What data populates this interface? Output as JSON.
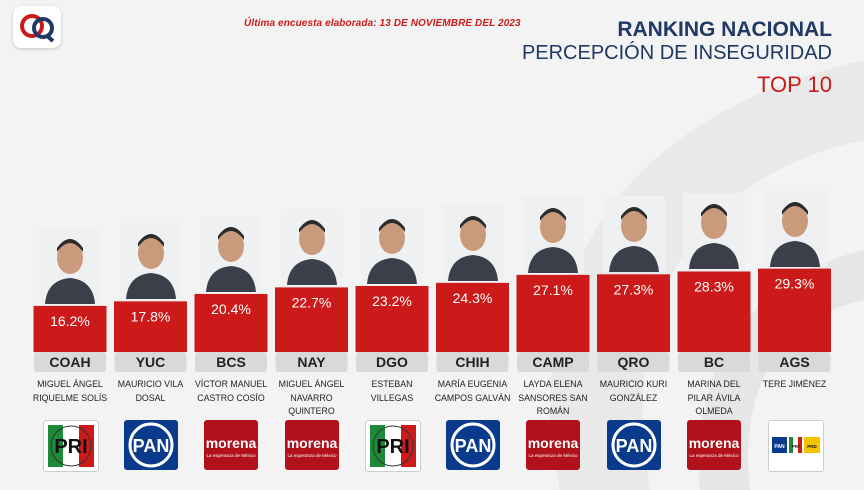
{
  "header": {
    "survey_note": "Última encuesta elaborada: 13 DE NOVIEMBRE DEL 2023",
    "title_line1": "RANKING NACIONAL",
    "title_line2": "PERCEPCIÓN DE INSEGURIDAD",
    "title_line3": "TOP 10"
  },
  "colors": {
    "bar": "#cc1a1a",
    "navy": "#1f3864",
    "state_box": "#d9d9d9"
  },
  "chart_data": {
    "type": "bar",
    "categories": [
      "COAH",
      "YUC",
      "BCS",
      "NAY",
      "DGO",
      "CHIH",
      "CAMP",
      "QRO",
      "BC",
      "AGS"
    ],
    "values": [
      16.2,
      17.8,
      20.4,
      22.7,
      23.2,
      24.3,
      27.1,
      27.3,
      28.3,
      29.3
    ],
    "value_labels": [
      "16.2%",
      "17.8%",
      "20.4%",
      "22.7%",
      "23.2%",
      "24.3%",
      "27.1%",
      "27.3%",
      "28.3%",
      "29.3%"
    ],
    "ylim": [
      0,
      35
    ],
    "grid": false,
    "legend": "none"
  },
  "candidates": [
    {
      "state": "COAH",
      "name": "Miguel Ángel Riquelme Solís",
      "party": "PRI",
      "party_text": "PRI"
    },
    {
      "state": "YUC",
      "name": "Mauricio Vila Dosal",
      "party": "PAN",
      "party_text": "PAN"
    },
    {
      "state": "BCS",
      "name": "Víctor Manuel Castro Cosío",
      "party": "MORENA",
      "party_text": "morena",
      "party_sub": "La esperanza de México"
    },
    {
      "state": "NAY",
      "name": "Miguel Ángel Navarro Quintero",
      "party": "MORENA",
      "party_text": "morena",
      "party_sub": "La esperanza de México"
    },
    {
      "state": "DGO",
      "name": "Esteban Villegas",
      "party": "PRI",
      "party_text": "PRI"
    },
    {
      "state": "CHIH",
      "name": "María Eugenia Campos Galván",
      "party": "PAN",
      "party_text": "PAN"
    },
    {
      "state": "CAMP",
      "name": "Layda Elena Sansores San Román",
      "party": "MORENA",
      "party_text": "morena",
      "party_sub": "La esperanza de México"
    },
    {
      "state": "QRO",
      "name": "Mauricio Kuri González",
      "party": "PAN",
      "party_text": "PAN"
    },
    {
      "state": "BC",
      "name": "Marina del Pilar Ávila Olmeda",
      "party": "MORENA",
      "party_text": "morena",
      "party_sub": "La esperanza de México"
    },
    {
      "state": "AGS",
      "name": "Tere Jiménez",
      "party": "PAN-PRI-PRD",
      "party_text": "PAN PRI PRD"
    }
  ]
}
